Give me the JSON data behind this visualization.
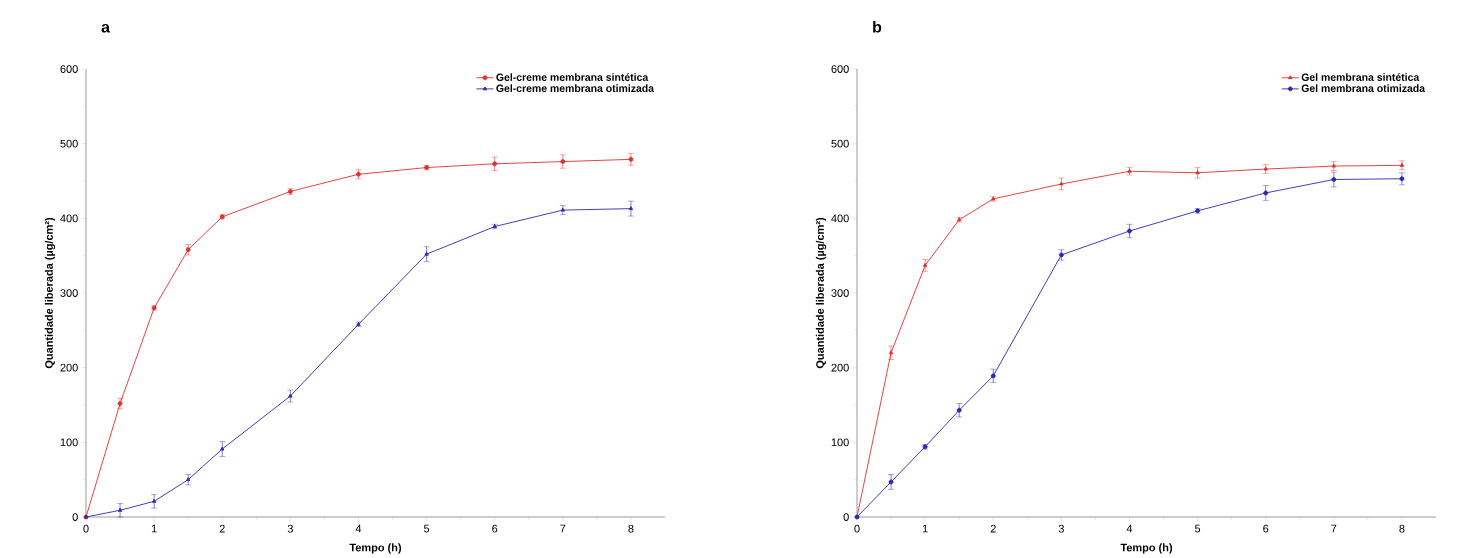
{
  "chart_data": [
    {
      "type": "line",
      "title": "a",
      "xlabel": "Tempo (h)",
      "ylabel": "Quantidade liberada (µg/cm²)",
      "x": [
        0,
        0.5,
        1,
        1.5,
        2,
        3,
        4,
        5,
        6,
        7,
        8
      ],
      "xlim": [
        0,
        8.5
      ],
      "xticks": [
        0,
        1,
        2,
        3,
        4,
        5,
        6,
        7,
        8
      ],
      "ylim": [
        0,
        600
      ],
      "yticks": [
        0,
        100,
        200,
        300,
        400,
        500,
        600
      ],
      "legend": "top right",
      "line_style": "solid",
      "series": [
        {
          "name": "Gel-creme membrana sintética",
          "color": "#e03030",
          "marker": "circle",
          "values": [
            0,
            152,
            280,
            358,
            402,
            436,
            459,
            468,
            473,
            476,
            479
          ],
          "errors": [
            null,
            7,
            3,
            7,
            3,
            4,
            6,
            3,
            9,
            9,
            8
          ]
        },
        {
          "name": "Gel-creme membrana otimizada",
          "color": "#2a2ab0",
          "marker": "triangle",
          "values": [
            0,
            9,
            21,
            50,
            91,
            162,
            258,
            352,
            389,
            411,
            413
          ],
          "errors": [
            null,
            9,
            9,
            7,
            10,
            8,
            3,
            10,
            3,
            6,
            10
          ]
        }
      ]
    },
    {
      "type": "line",
      "title": "b",
      "xlabel": "Tempo (h)",
      "ylabel": "Quantidade liberada (µg/cm²)",
      "x": [
        0,
        0.5,
        1,
        1.5,
        2,
        3,
        4,
        5,
        6,
        7,
        8
      ],
      "xlim": [
        0,
        8.5
      ],
      "xticks": [
        0,
        1,
        2,
        3,
        4,
        5,
        6,
        7,
        8
      ],
      "ylim": [
        0,
        600
      ],
      "yticks": [
        0,
        100,
        200,
        300,
        400,
        500,
        600
      ],
      "legend": "top right",
      "line_style": "solid",
      "series": [
        {
          "name": "Gel membrana sintética",
          "color": "#e03030",
          "marker": "triangle",
          "values": [
            0,
            220,
            337,
            398,
            426,
            446,
            463,
            461,
            466,
            470,
            471
          ],
          "errors": [
            null,
            9,
            8,
            3,
            3,
            8,
            5,
            7,
            6,
            6,
            6
          ]
        },
        {
          "name": "Gel membrana otimizada",
          "color": "#2a2ab0",
          "marker": "circle",
          "values": [
            0,
            47,
            94,
            143,
            189,
            351,
            383,
            410,
            434,
            452,
            453
          ],
          "errors": [
            null,
            10,
            3,
            9,
            9,
            7,
            9,
            3,
            10,
            10,
            8
          ]
        }
      ]
    }
  ]
}
